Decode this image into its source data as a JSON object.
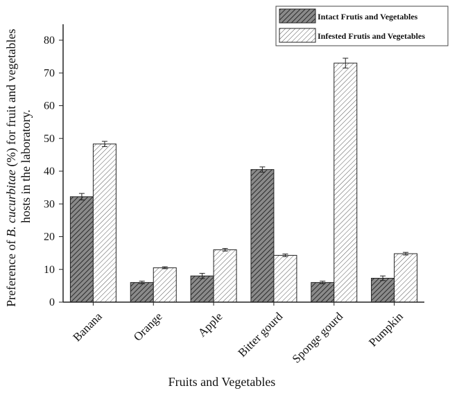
{
  "chart_data": {
    "type": "bar",
    "categories": [
      "Banana",
      "Orange",
      "Apple",
      "Bitter gourd",
      "Sponge gourd",
      "Pumpkin"
    ],
    "series": [
      {
        "name": "Intact Frutis and Vegetables",
        "values": [
          32.2,
          6.0,
          8.0,
          40.5,
          6.0,
          7.3
        ],
        "errors": [
          1.0,
          0.4,
          0.8,
          0.8,
          0.4,
          0.7
        ],
        "fill": "#6f6f6f",
        "pattern": "dark-hatch"
      },
      {
        "name": "Infested Frutis and Vegetables",
        "values": [
          48.3,
          10.5,
          16.0,
          14.3,
          73.0,
          14.8
        ],
        "errors": [
          0.8,
          0.3,
          0.4,
          0.4,
          1.5,
          0.4
        ],
        "fill": "#ffffff",
        "pattern": "light-hatch"
      }
    ],
    "xlabel": "Fruits and Vegetables",
    "ylabel": {
      "pre": "Preference of ",
      "italic": "B. cucurbitae",
      "post": " (%) for fruit and vegetables",
      "line2": "hosts in the laboratory."
    },
    "ylim": [
      0,
      80
    ],
    "yticks": [
      "0",
      "10",
      "20",
      "30",
      "40",
      "50",
      "60",
      "70",
      "80"
    ],
    "grid": false,
    "legend": "top-right"
  }
}
